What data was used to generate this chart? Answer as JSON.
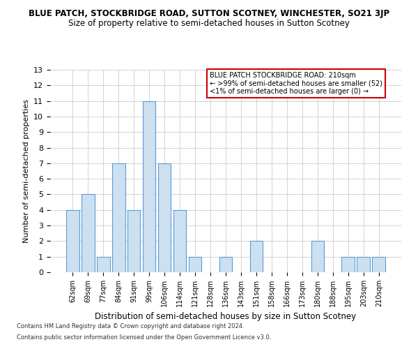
{
  "title": "BLUE PATCH, STOCKBRIDGE ROAD, SUTTON SCOTNEY, WINCHESTER, SO21 3JP",
  "subtitle": "Size of property relative to semi-detached houses in Sutton Scotney",
  "xlabel": "Distribution of semi-detached houses by size in Sutton Scotney",
  "ylabel": "Number of semi-detached properties",
  "categories": [
    "62sqm",
    "69sqm",
    "77sqm",
    "84sqm",
    "91sqm",
    "99sqm",
    "106sqm",
    "114sqm",
    "121sqm",
    "128sqm",
    "136sqm",
    "143sqm",
    "151sqm",
    "158sqm",
    "166sqm",
    "173sqm",
    "180sqm",
    "188sqm",
    "195sqm",
    "203sqm",
    "210sqm"
  ],
  "values": [
    4,
    5,
    1,
    7,
    4,
    11,
    7,
    4,
    1,
    0,
    1,
    0,
    2,
    0,
    0,
    0,
    2,
    0,
    1,
    1,
    1
  ],
  "bar_color": "#cce0f0",
  "bar_edge_color": "#5b9bd5",
  "legend_box_edge": "#cc0000",
  "legend_line1": "BLUE PATCH STOCKBRIDGE ROAD: 210sqm",
  "legend_line2": "← >99% of semi-detached houses are smaller (52)",
  "legend_line3": "<1% of semi-detached houses are larger (0) →",
  "ylim": [
    0,
    13
  ],
  "yticks": [
    0,
    1,
    2,
    3,
    4,
    5,
    6,
    7,
    8,
    9,
    10,
    11,
    12,
    13
  ],
  "footer1": "Contains HM Land Registry data © Crown copyright and database right 2024.",
  "footer2": "Contains public sector information licensed under the Open Government Licence v3.0.",
  "background_color": "#ffffff",
  "grid_color": "#cccccc",
  "title_fontsize": 8.5,
  "subtitle_fontsize": 8.5,
  "ylabel_fontsize": 8,
  "xlabel_fontsize": 8.5,
  "tick_fontsize": 8,
  "xtick_fontsize": 7,
  "legend_fontsize": 7,
  "footer_fontsize": 6
}
